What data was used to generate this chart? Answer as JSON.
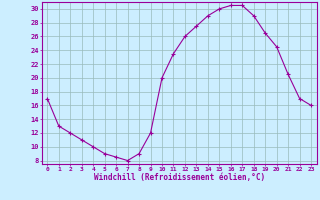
{
  "hours": [
    0,
    1,
    2,
    3,
    4,
    5,
    6,
    7,
    8,
    9,
    10,
    11,
    12,
    13,
    14,
    15,
    16,
    17,
    18,
    19,
    20,
    21,
    22,
    23
  ],
  "values": [
    17,
    13,
    12,
    11,
    10,
    9,
    8.5,
    8,
    9,
    12,
    20,
    23.5,
    26,
    27.5,
    29,
    30,
    30.5,
    30.5,
    29,
    26.5,
    24.5,
    20.5,
    17,
    16
  ],
  "line_color": "#990099",
  "marker": "+",
  "marker_size": 3,
  "background_color": "#cceeff",
  "grid_color": "#99bbbb",
  "xlabel": "Windchill (Refroidissement éolien,°C)",
  "xlabel_color": "#990099",
  "tick_color": "#990099",
  "axis_color": "#990099",
  "ylim": [
    7.5,
    31
  ],
  "yticks": [
    8,
    10,
    12,
    14,
    16,
    18,
    20,
    22,
    24,
    26,
    28,
    30
  ],
  "xlim": [
    -0.5,
    23.5
  ],
  "xticks": [
    0,
    1,
    2,
    3,
    4,
    5,
    6,
    7,
    8,
    9,
    10,
    11,
    12,
    13,
    14,
    15,
    16,
    17,
    18,
    19,
    20,
    21,
    22,
    23
  ]
}
